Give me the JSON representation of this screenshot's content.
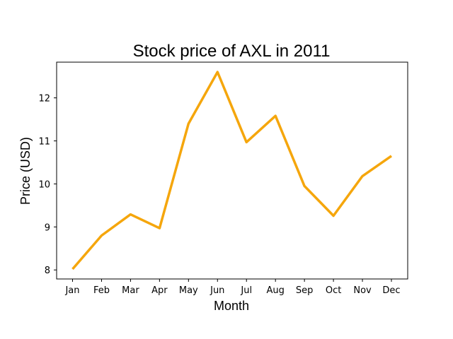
{
  "chart_data": {
    "type": "line",
    "title": "Stock price of AXL in 2011",
    "xlabel": "Month",
    "ylabel": "Price (USD)",
    "categories": [
      "Jan",
      "Feb",
      "Mar",
      "Apr",
      "May",
      "Jun",
      "Jul",
      "Aug",
      "Sep",
      "Oct",
      "Nov",
      "Dec"
    ],
    "series": [
      {
        "values": [
          8.02,
          8.8,
          9.29,
          8.97,
          11.4,
          12.6,
          10.97,
          11.58,
          9.95,
          9.26,
          10.18,
          10.65
        ],
        "color": "#f5a60c"
      }
    ],
    "yticks": [
      8,
      9,
      10,
      11,
      12
    ],
    "ylim": [
      7.79,
      12.83
    ],
    "grid": false,
    "legend": "none"
  }
}
